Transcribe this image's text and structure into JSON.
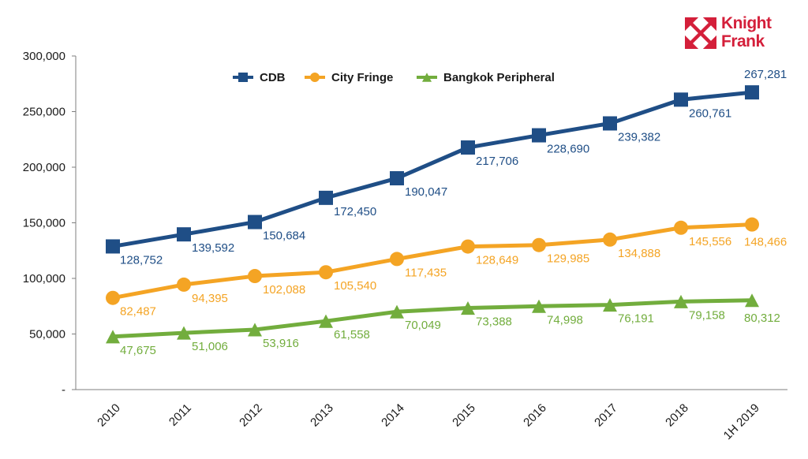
{
  "logo": {
    "line1": "Knight",
    "line2": "Frank",
    "color": "#d41f3a"
  },
  "chart_data": {
    "type": "line",
    "categories": [
      "2010",
      "2011",
      "2012",
      "2013",
      "2014",
      "2015",
      "2016",
      "2017",
      "2018",
      "1H 2019"
    ],
    "ylim": [
      0,
      300000
    ],
    "yticks": [
      0,
      50000,
      100000,
      150000,
      200000,
      250000,
      300000
    ],
    "ytick_labels": [
      "-",
      "50,000",
      "100,000",
      "150,000",
      "200,000",
      "250,000",
      "300,000"
    ],
    "grid": false,
    "legend_position": "top",
    "series": [
      {
        "name": "CDB",
        "color": "#1f4e86",
        "marker": "square",
        "values": [
          128752,
          139592,
          150684,
          172450,
          190047,
          217706,
          228690,
          239382,
          260761,
          267281
        ],
        "labels": [
          "128,752",
          "139,592",
          "150,684",
          "172,450",
          "190,047",
          "217,706",
          "228,690",
          "239,382",
          "260,761",
          "267,281"
        ]
      },
      {
        "name": "City Fringe",
        "color": "#f4a424",
        "marker": "circle",
        "values": [
          82487,
          94395,
          102088,
          105540,
          117435,
          128649,
          129985,
          134888,
          145556,
          148466
        ],
        "labels": [
          "82,487",
          "94,395",
          "102,088",
          "105,540",
          "117,435",
          "128,649",
          "129,985",
          "134,888",
          "145,556",
          "148,466"
        ]
      },
      {
        "name": "Bangkok Peripheral",
        "color": "#72ad3d",
        "marker": "triangle",
        "values": [
          47675,
          51006,
          53916,
          61558,
          70049,
          73388,
          74998,
          76191,
          79158,
          80312
        ],
        "labels": [
          "47,675",
          "51,006",
          "53,916",
          "61,558",
          "70,049",
          "73,388",
          "74,998",
          "76,191",
          "79,158",
          "80,312"
        ]
      }
    ]
  }
}
